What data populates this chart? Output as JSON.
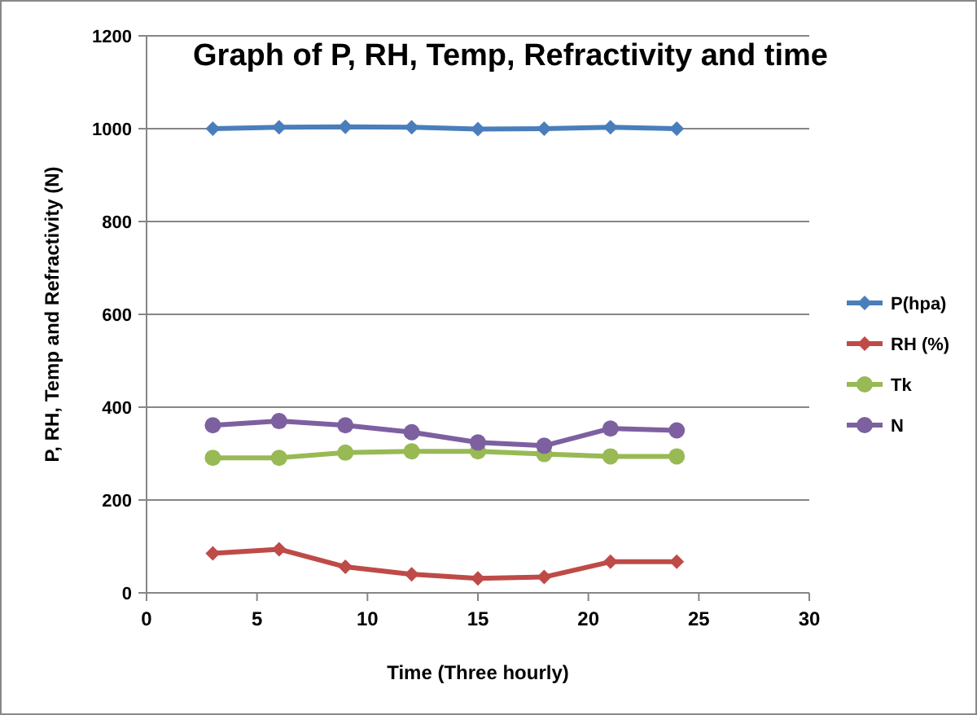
{
  "chart_data": {
    "type": "line",
    "title": "Graph of P, RH, Temp, Refractivity and time",
    "xlabel": "Time (Three hourly)",
    "ylabel": "P, RH, Temp and Refractivity  (N)",
    "x": [
      3,
      6,
      9,
      12,
      15,
      18,
      21,
      24
    ],
    "series": [
      {
        "name": "P(hpa)",
        "color": "#4a7ebb",
        "marker": "diamond",
        "values": [
          1000,
          1003,
          1004,
          1003,
          999,
          1000,
          1003,
          1000
        ]
      },
      {
        "name": "RH (%)",
        "color": "#be4b48",
        "marker": "diamond",
        "values": [
          85,
          94,
          56,
          40,
          31,
          34,
          67,
          67
        ]
      },
      {
        "name": "Tk",
        "color": "#98b954",
        "marker": "circle",
        "values": [
          291,
          291,
          302,
          305,
          305,
          299,
          294,
          294
        ]
      },
      {
        "name": "N",
        "color": "#7d60a0",
        "marker": "circle",
        "values": [
          361,
          370,
          361,
          346,
          324,
          317,
          354,
          350
        ]
      }
    ],
    "xlim": [
      0,
      30
    ],
    "xticks": [
      0,
      5,
      10,
      15,
      20,
      25,
      30
    ],
    "ylim": [
      0,
      1200
    ],
    "yticks": [
      0,
      200,
      400,
      600,
      800,
      1000,
      1200
    ],
    "grid": "y",
    "legend": "right"
  }
}
